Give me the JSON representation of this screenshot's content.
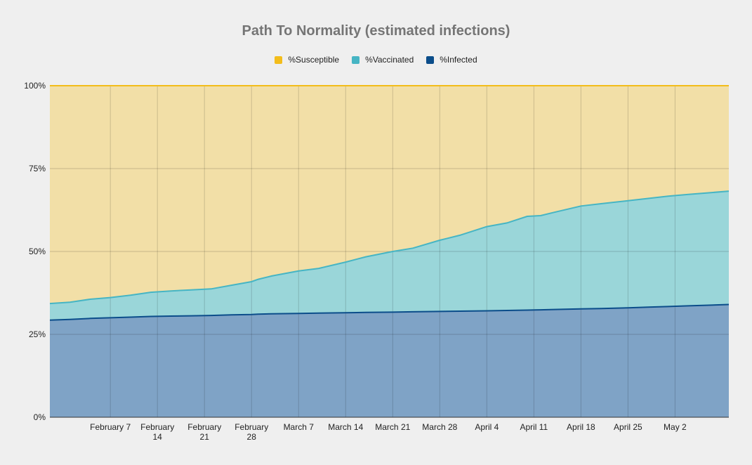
{
  "chart_data": {
    "type": "area",
    "stacking": "stacked-to-100%",
    "title": "Path To Normality (estimated infections)",
    "xlabel": "",
    "ylabel": "",
    "ylim": [
      0,
      100
    ],
    "yticks": [
      "0%",
      "25%",
      "50%",
      "75%",
      "100%"
    ],
    "xlim": [
      "2021-01-29",
      "2021-05-10"
    ],
    "xticks": [
      {
        "date": "2021-02-07",
        "label": [
          "February 7"
        ]
      },
      {
        "date": "2021-02-14",
        "label": [
          "February",
          "14"
        ]
      },
      {
        "date": "2021-02-21",
        "label": [
          "February",
          "21"
        ]
      },
      {
        "date": "2021-02-28",
        "label": [
          "February",
          "28"
        ]
      },
      {
        "date": "2021-03-07",
        "label": [
          "March 7"
        ]
      },
      {
        "date": "2021-03-14",
        "label": [
          "March 14"
        ]
      },
      {
        "date": "2021-03-21",
        "label": [
          "March 21"
        ]
      },
      {
        "date": "2021-03-28",
        "label": [
          "March 28"
        ]
      },
      {
        "date": "2021-04-04",
        "label": [
          "April 4"
        ]
      },
      {
        "date": "2021-04-11",
        "label": [
          "April 11"
        ]
      },
      {
        "date": "2021-04-18",
        "label": [
          "April 18"
        ]
      },
      {
        "date": "2021-04-25",
        "label": [
          "April 25"
        ]
      },
      {
        "date": "2021-05-02",
        "label": [
          "May 2"
        ]
      }
    ],
    "grid": true,
    "legend_position": "top-center",
    "x": [
      "2021-01-29",
      "2021-02-01",
      "2021-02-04",
      "2021-02-07",
      "2021-02-10",
      "2021-02-13",
      "2021-02-16",
      "2021-02-19",
      "2021-02-22",
      "2021-02-25",
      "2021-02-28",
      "2021-03-01",
      "2021-03-03",
      "2021-03-07",
      "2021-03-10",
      "2021-03-14",
      "2021-03-17",
      "2021-03-21",
      "2021-03-24",
      "2021-03-28",
      "2021-03-31",
      "2021-04-04",
      "2021-04-07",
      "2021-04-10",
      "2021-04-12",
      "2021-04-14",
      "2021-04-18",
      "2021-04-21",
      "2021-04-25",
      "2021-04-28",
      "2021-05-01",
      "2021-05-04",
      "2021-05-07",
      "2021-05-10"
    ],
    "series": [
      {
        "name": "%Infected",
        "color": "#0b4d8a",
        "fill": "#7fa3c6",
        "values": [
          29.3,
          29.5,
          29.8,
          30.0,
          30.2,
          30.4,
          30.5,
          30.6,
          30.7,
          30.9,
          31.0,
          31.1,
          31.2,
          31.3,
          31.4,
          31.5,
          31.6,
          31.7,
          31.8,
          31.9,
          32.0,
          32.1,
          32.2,
          32.3,
          32.4,
          32.5,
          32.7,
          32.8,
          33.0,
          33.2,
          33.4,
          33.6,
          33.8,
          34.0
        ]
      },
      {
        "name": "%Vaccinated",
        "color": "#46b5c4",
        "fill": "#9ad6d9",
        "values": [
          5.0,
          5.2,
          5.8,
          6.1,
          6.6,
          7.3,
          7.6,
          7.8,
          8.0,
          8.9,
          9.9,
          10.5,
          11.4,
          12.8,
          13.5,
          15.3,
          16.8,
          18.3,
          19.2,
          21.5,
          22.9,
          25.4,
          26.4,
          28.3,
          28.4,
          29.3,
          31.0,
          31.6,
          32.3,
          32.8,
          33.3,
          33.6,
          33.9,
          34.2
        ]
      },
      {
        "name": "%Susceptible",
        "color": "#f3bd1b",
        "fill": "#f2dfa7",
        "values": [
          65.7,
          65.3,
          64.4,
          63.9,
          63.2,
          62.3,
          61.9,
          61.6,
          61.3,
          60.2,
          59.1,
          58.4,
          57.4,
          55.9,
          55.1,
          53.2,
          51.6,
          50.0,
          49.0,
          46.6,
          45.1,
          42.5,
          41.4,
          39.4,
          39.2,
          38.2,
          36.3,
          35.6,
          34.7,
          34.0,
          33.3,
          32.8,
          32.3,
          31.8
        ]
      }
    ]
  },
  "legend": [
    {
      "label": "%Susceptible",
      "color": "#f3bd1b"
    },
    {
      "label": "%Vaccinated",
      "color": "#46b5c4"
    },
    {
      "label": "%Infected",
      "color": "#0b4d8a"
    }
  ]
}
